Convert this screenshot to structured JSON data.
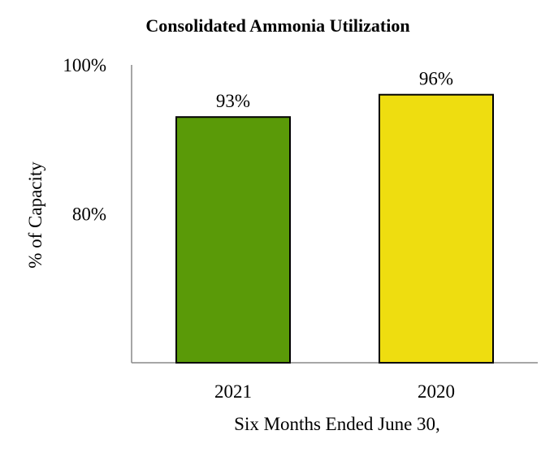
{
  "chart_data": {
    "type": "bar",
    "title": "Consolidated Ammonia Utilization",
    "xlabel": "Six Months Ended June 30,",
    "ylabel": "% of Capacity",
    "categories": [
      "2021",
      "2020"
    ],
    "values": [
      93,
      96
    ],
    "value_labels": [
      "93%",
      "96%"
    ],
    "bar_colors": [
      "#5a9a08",
      "#eedd10"
    ],
    "ylim": [
      60,
      100
    ],
    "yticks": [
      80,
      100
    ],
    "ytick_labels": [
      "80%",
      "100%"
    ],
    "grid": false,
    "legend": "none"
  }
}
